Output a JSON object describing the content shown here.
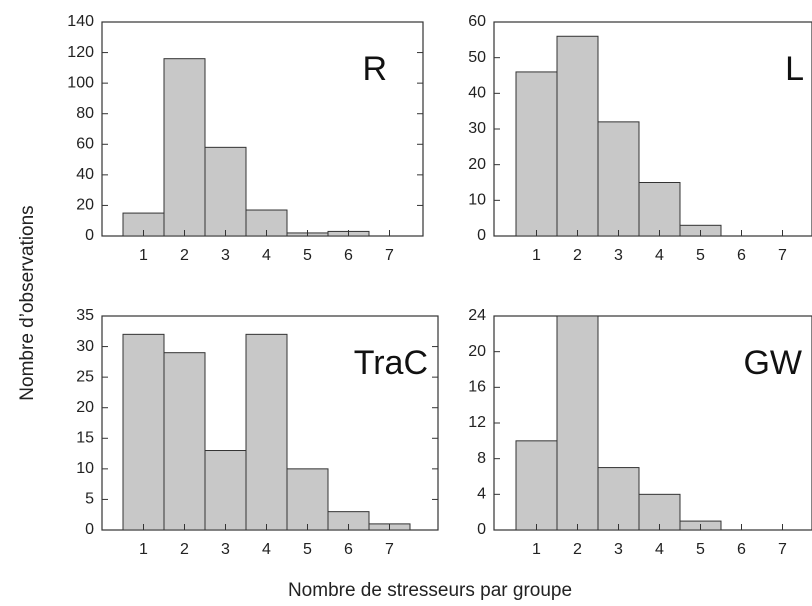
{
  "figure": {
    "ylabel": "Nombre d’observations",
    "xlabel": "Nombre de stresseurs par groupe"
  },
  "chart_data": [
    {
      "type": "bar",
      "title": "R",
      "categories": [
        "1",
        "2",
        "3",
        "4",
        "5",
        "6",
        "7"
      ],
      "values": [
        15,
        116,
        58,
        17,
        2,
        3,
        0
      ],
      "ylim": [
        0,
        140
      ],
      "yticks": [
        0,
        20,
        40,
        60,
        80,
        100,
        120,
        140
      ],
      "colors": {
        "bar": "#c8c8c8",
        "edge": "#333333"
      }
    },
    {
      "type": "bar",
      "title": "L",
      "categories": [
        "1",
        "2",
        "3",
        "4",
        "5",
        "6",
        "7"
      ],
      "values": [
        46,
        56,
        32,
        15,
        3,
        0,
        0
      ],
      "ylim": [
        0,
        60
      ],
      "yticks": [
        0,
        10,
        20,
        30,
        40,
        50,
        60
      ],
      "colors": {
        "bar": "#c8c8c8",
        "edge": "#333333"
      }
    },
    {
      "type": "bar",
      "title": "TraC",
      "categories": [
        "1",
        "2",
        "3",
        "4",
        "5",
        "6",
        "7"
      ],
      "values": [
        32,
        29,
        13,
        32,
        10,
        3,
        1
      ],
      "ylim": [
        0,
        35
      ],
      "yticks": [
        0,
        5,
        10,
        15,
        20,
        25,
        30,
        35
      ],
      "colors": {
        "bar": "#c8c8c8",
        "edge": "#333333"
      }
    },
    {
      "type": "bar",
      "title": "GW",
      "categories": [
        "1",
        "2",
        "3",
        "4",
        "5",
        "6",
        "7"
      ],
      "values": [
        10,
        24,
        7,
        4,
        1,
        0,
        0
      ],
      "ylim": [
        0,
        24
      ],
      "yticks": [
        0,
        4,
        8,
        12,
        16,
        20,
        24
      ],
      "colors": {
        "bar": "#c8c8c8",
        "edge": "#333333"
      }
    }
  ]
}
